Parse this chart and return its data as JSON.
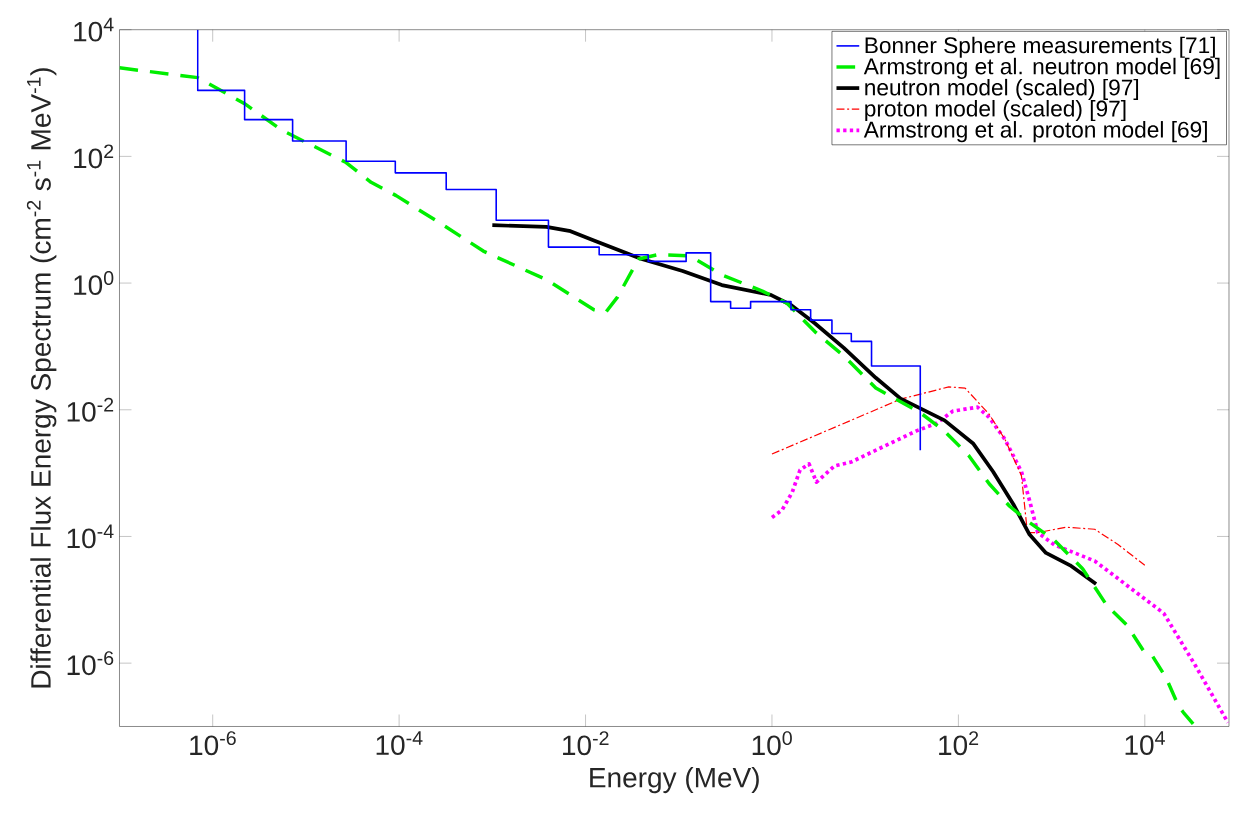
{
  "chart_data": {
    "type": "line",
    "xlabel": "Energy (MeV)",
    "ylabel": "Differential Flux Energy Spectrum (cm$^{-2}$  s$^{-1}$ MeV$^{-1}$)",
    "log": "xy",
    "legend": "top right",
    "grid": false,
    "marker": "none",
    "xlim": [
      1e-07,
      80000.0
    ],
    "ylim": [
      1e-07,
      10000.0
    ],
    "xticks": [
      {
        "value": 1e-06,
        "label": "10$^{-6}$"
      },
      {
        "value": 0.0001,
        "label": "10$^{-4}$"
      },
      {
        "value": 0.01,
        "label": "10$^{-2}$"
      },
      {
        "value": 1,
        "label": "10$^{0}$"
      },
      {
        "value": 100,
        "label": "10$^{2}$"
      },
      {
        "value": 10000.0,
        "label": "10$^{4}$"
      }
    ],
    "yticks": [
      {
        "value": 1e-06,
        "label": "10$^{-6}$"
      },
      {
        "value": 0.0001,
        "label": "10$^{-4}$"
      },
      {
        "value": 0.01,
        "label": "10$^{-2}$"
      },
      {
        "value": 1,
        "label": "10$^{0}$"
      },
      {
        "value": 100,
        "label": "10$^{2}$"
      },
      {
        "value": 10000.0,
        "label": "10$^{4}$"
      }
    ],
    "series": [
      {
        "name": "Bonner Sphere measurements [71]",
        "type": "step",
        "color": "#0000ff",
        "line_style": "solid",
        "x": [
          6.9e-07,
          6.9e-07,
          2.2e-06,
          7.2e-06,
          2.7e-05,
          9.1e-05,
          0.00032,
          0.0011,
          0.004,
          0.014,
          0.047,
          0.12,
          0.22,
          0.36,
          0.59,
          1.6,
          2.6,
          4.4,
          7.1,
          11.7,
          39
        ],
        "values": [
          10000.0,
          1100,
          380,
          175,
          84,
          55,
          30,
          9.8,
          3.7,
          2.8,
          2.2,
          3.0,
          0.51,
          0.4,
          0.51,
          0.38,
          0.26,
          0.16,
          0.12,
          0.049,
          0.0023
        ]
      },
      {
        "name": "Armstrong et al. neutron model [69]",
        "color": "#00ee00",
        "line_style": "dashed",
        "x": [
          1e-07,
          6.9e-07,
          2.2e-06,
          5.5e-06,
          2.7e-05,
          5e-05,
          9.3e-05,
          0.00032,
          0.0008,
          0.0038,
          0.0123,
          0.0166,
          0.022,
          0.037,
          0.059,
          0.13,
          0.29,
          0.8,
          1.45,
          2.9,
          5.9,
          13,
          39,
          71,
          129,
          214,
          355,
          580,
          1070,
          2150,
          3900,
          6400,
          9600,
          11700,
          17000,
          23000,
          26000,
          33000
        ],
        "values": [
          2500,
          1750,
          680,
          260,
          80,
          39,
          24,
          7.7,
          3.2,
          1.13,
          0.38,
          0.35,
          0.6,
          2.4,
          2.8,
          2.7,
          1.35,
          0.74,
          0.48,
          0.17,
          0.071,
          0.022,
          0.009,
          0.0046,
          0.0019,
          0.00068,
          0.0003,
          0.000166,
          8.7e-05,
          3.1e-05,
          8.2e-06,
          4e-06,
          1.6e-06,
          1.4e-06,
          5.8e-07,
          2.1e-07,
          1.66e-07,
          1.1e-07
        ]
      },
      {
        "name": "neutron model (scaled) [97]",
        "color": "#000000",
        "line_style": "solid",
        "x": [
          0.001,
          0.0038,
          0.0069,
          0.0123,
          0.024,
          0.04,
          0.11,
          0.29,
          0.97,
          1.6,
          2.9,
          5.9,
          13,
          24,
          71,
          145,
          236,
          390,
          580,
          870,
          1580,
          3000
        ],
        "values": [
          8.2,
          7.7,
          6.6,
          4.7,
          3.2,
          2.4,
          1.55,
          0.93,
          0.65,
          0.45,
          0.23,
          0.095,
          0.032,
          0.015,
          0.0068,
          0.0029,
          0.00105,
          0.00032,
          0.000107,
          5.5e-05,
          3.5e-05,
          1.78e-05
        ]
      },
      {
        "name": "proton model (scaled) [97]",
        "color": "#ff0000",
        "line_style": "dashdot",
        "x": [
          1,
          24,
          79,
          118,
          214,
          316,
          475,
          550,
          710,
          1430,
          2900,
          5200,
          10000
        ],
        "values": [
          0.002,
          0.0147,
          0.023,
          0.022,
          0.0085,
          0.0034,
          0.00091,
          0.000115,
          0.000115,
          0.00014,
          0.00013,
          7.4e-05,
          3.5e-05
        ]
      },
      {
        "name": "Armstrong et al. proton model [69]",
        "color": "#ff00ff",
        "line_style": "dotted",
        "x": [
          1,
          1.28,
          1.65,
          2.0,
          2.5,
          3.0,
          4.7,
          7.1,
          35,
          58,
          87,
          160,
          214,
          316,
          475,
          580,
          710,
          1070,
          2900,
          6400,
          16000,
          35000,
          78000
        ],
        "values": [
          0.0002,
          0.00026,
          0.0005,
          0.00112,
          0.0014,
          0.00072,
          0.0013,
          0.0015,
          0.0046,
          0.0061,
          0.0095,
          0.011,
          0.0076,
          0.0034,
          0.00105,
          0.00037,
          0.000115,
          7.4e-05,
          4.1e-05,
          1.7e-05,
          6.1e-06,
          9.1e-07,
          1.15e-07
        ]
      }
    ]
  }
}
